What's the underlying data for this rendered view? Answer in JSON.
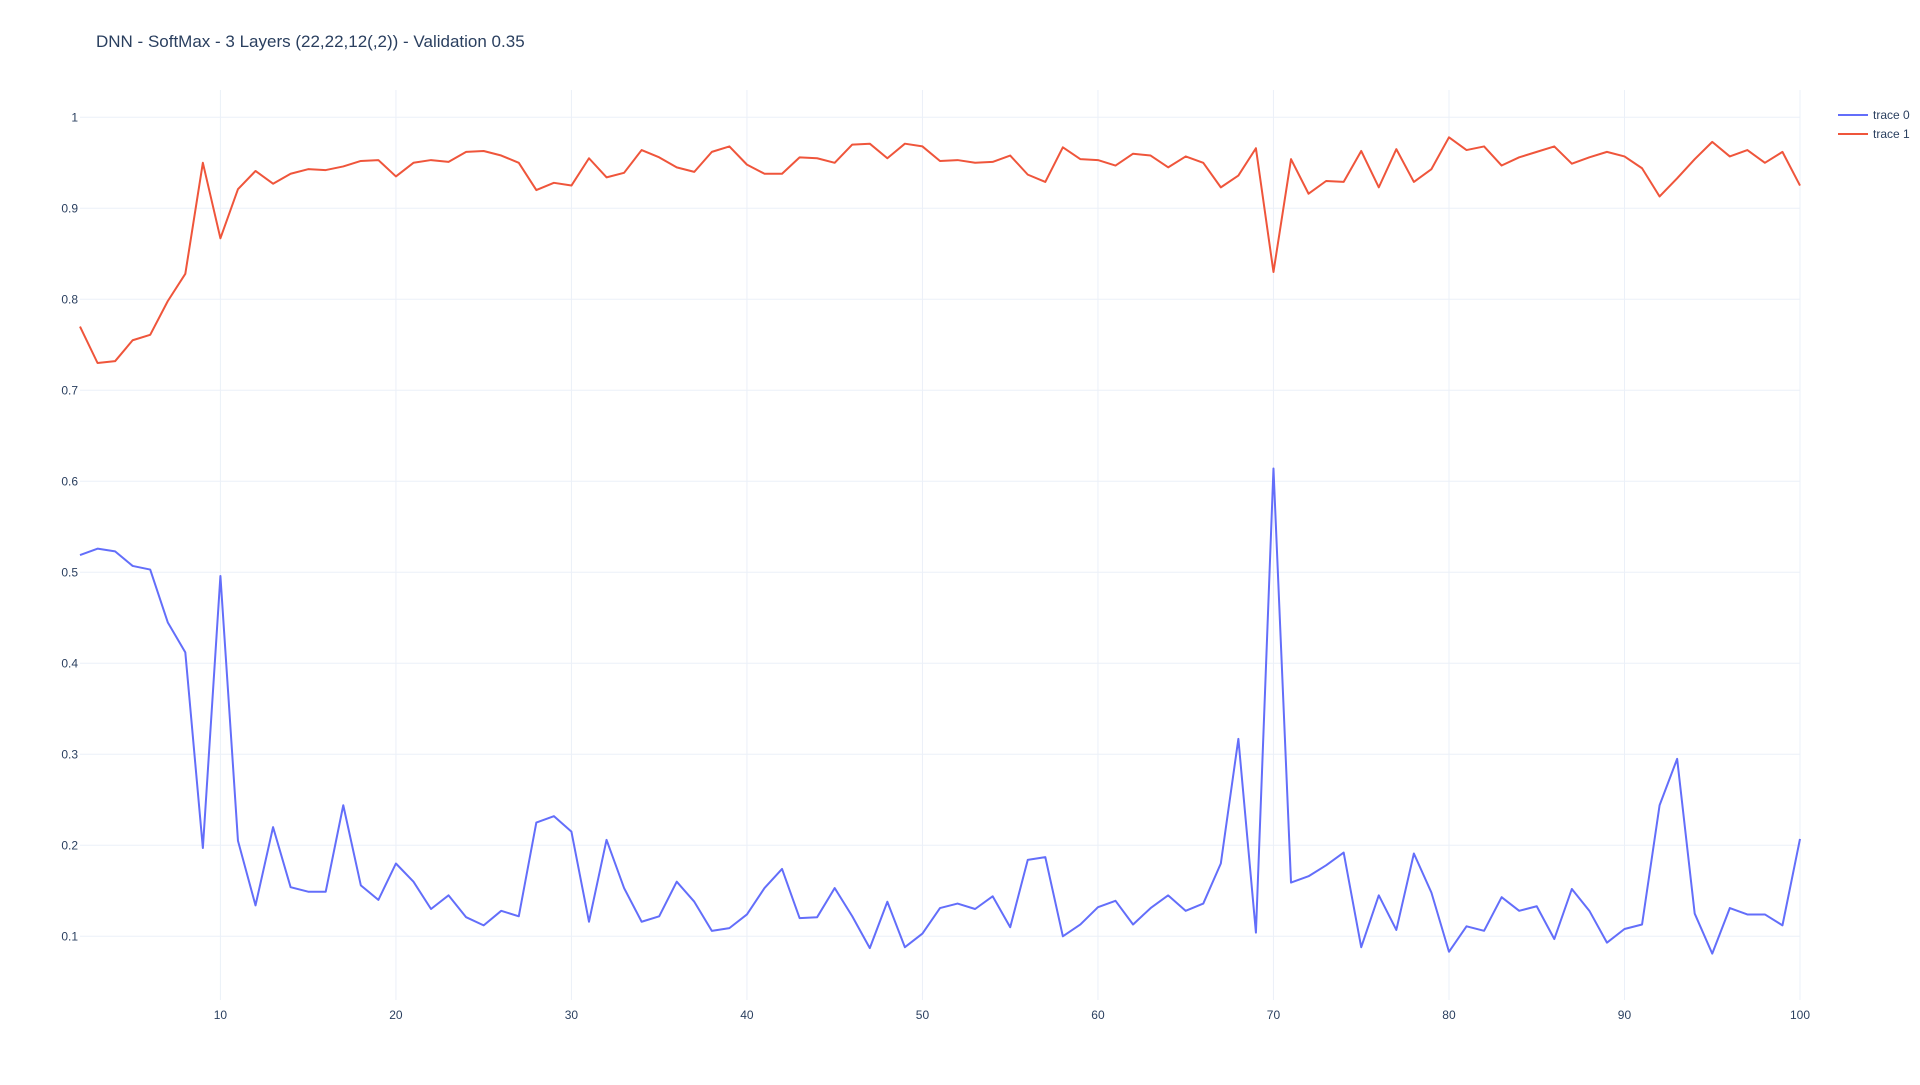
{
  "chart_data": {
    "type": "line",
    "title": "DNN - SoftMax - 3 Layers (22,22,12(,2)) - Validation 0.35",
    "xlabel": "",
    "ylabel": "",
    "x": [
      2,
      3,
      4,
      5,
      6,
      7,
      8,
      9,
      10,
      11,
      12,
      13,
      14,
      15,
      16,
      17,
      18,
      19,
      20,
      21,
      22,
      23,
      24,
      25,
      26,
      27,
      28,
      29,
      30,
      31,
      32,
      33,
      34,
      35,
      36,
      37,
      38,
      39,
      40,
      41,
      42,
      43,
      44,
      45,
      46,
      47,
      48,
      49,
      50,
      51,
      52,
      53,
      54,
      55,
      56,
      57,
      58,
      59,
      60,
      61,
      62,
      63,
      64,
      65,
      66,
      67,
      68,
      69,
      70,
      71,
      72,
      73,
      74,
      75,
      76,
      77,
      78,
      79,
      80,
      81,
      82,
      83,
      84,
      85,
      86,
      87,
      88,
      89,
      90,
      91,
      92,
      93,
      94,
      95,
      96,
      97,
      98,
      99,
      100
    ],
    "xlim": [
      2,
      100
    ],
    "ylim": [
      0.03,
      1.03
    ],
    "x_ticks": [
      10,
      20,
      30,
      40,
      50,
      60,
      70,
      80,
      90,
      100
    ],
    "y_ticks": [
      0.1,
      0.2,
      0.3,
      0.4,
      0.5,
      0.6,
      0.7,
      0.8,
      0.9,
      1
    ],
    "x_tick_labels": [
      "10",
      "20",
      "30",
      "40",
      "50",
      "60",
      "70",
      "80",
      "90",
      "100"
    ],
    "y_tick_labels": [
      "0.1",
      "0.2",
      "0.3",
      "0.4",
      "0.5",
      "0.6",
      "0.7",
      "0.8",
      "0.9",
      "1"
    ],
    "grid": true,
    "legend_position": "top-right",
    "series": [
      {
        "name": "trace 0",
        "color": "#636efa",
        "values": [
          0.519,
          0.526,
          0.523,
          0.507,
          0.503,
          0.445,
          0.412,
          0.197,
          0.496,
          0.205,
          0.134,
          0.22,
          0.154,
          0.149,
          0.149,
          0.244,
          0.156,
          0.14,
          0.18,
          0.16,
          0.13,
          0.145,
          0.121,
          0.112,
          0.128,
          0.122,
          0.225,
          0.232,
          0.215,
          0.116,
          0.206,
          0.153,
          0.116,
          0.122,
          0.16,
          0.138,
          0.106,
          0.109,
          0.124,
          0.153,
          0.174,
          0.12,
          0.121,
          0.153,
          0.122,
          0.087,
          0.138,
          0.088,
          0.103,
          0.131,
          0.136,
          0.13,
          0.144,
          0.11,
          0.184,
          0.187,
          0.1,
          0.113,
          0.132,
          0.139,
          0.113,
          0.131,
          0.145,
          0.128,
          0.136,
          0.18,
          0.317,
          0.104,
          0.614,
          0.159,
          0.166,
          0.178,
          0.192,
          0.088,
          0.145,
          0.107,
          0.191,
          0.148,
          0.083,
          0.111,
          0.106,
          0.143,
          0.128,
          0.133,
          0.097,
          0.152,
          0.128,
          0.093,
          0.108,
          0.113,
          0.244,
          0.295,
          0.125,
          0.081,
          0.131,
          0.124,
          0.124,
          0.112,
          0.207
        ]
      },
      {
        "name": "trace 1",
        "color": "#ef553b",
        "values": [
          0.77,
          0.73,
          0.732,
          0.755,
          0.761,
          0.798,
          0.828,
          0.95,
          0.867,
          0.921,
          0.941,
          0.927,
          0.938,
          0.943,
          0.942,
          0.946,
          0.952,
          0.953,
          0.935,
          0.95,
          0.953,
          0.951,
          0.962,
          0.963,
          0.958,
          0.95,
          0.92,
          0.928,
          0.925,
          0.955,
          0.934,
          0.939,
          0.964,
          0.956,
          0.945,
          0.94,
          0.962,
          0.968,
          0.948,
          0.938,
          0.938,
          0.956,
          0.955,
          0.95,
          0.97,
          0.971,
          0.955,
          0.971,
          0.968,
          0.952,
          0.953,
          0.95,
          0.951,
          0.958,
          0.937,
          0.929,
          0.967,
          0.954,
          0.953,
          0.947,
          0.96,
          0.958,
          0.945,
          0.957,
          0.95,
          0.923,
          0.936,
          0.966,
          0.83,
          0.954,
          0.916,
          0.93,
          0.929,
          0.963,
          0.923,
          0.965,
          0.929,
          0.943,
          0.978,
          0.964,
          0.968,
          0.947,
          0.956,
          0.962,
          0.968,
          0.949,
          0.956,
          0.962,
          0.957,
          0.944,
          0.913,
          0.933,
          0.954,
          0.973,
          0.957,
          0.964,
          0.95,
          0.962,
          0.925
        ]
      }
    ]
  }
}
